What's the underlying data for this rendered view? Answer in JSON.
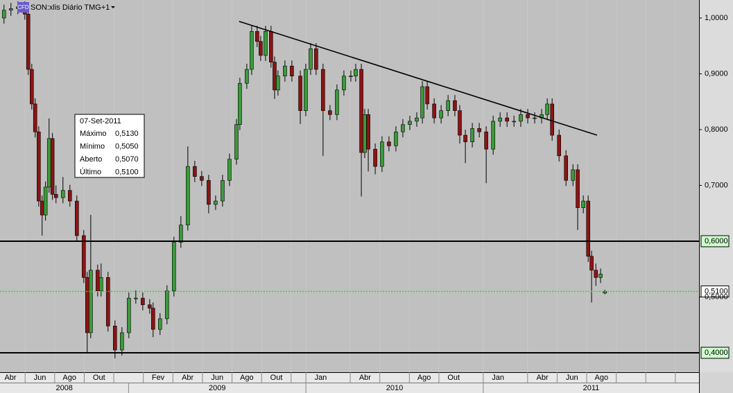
{
  "chart_data": {
    "type": "candlestick",
    "badge": "CFD",
    "title": "SON:xlis Diário TMG+1",
    "xlim": [
      3.3,
      50.6
    ],
    "ylim": [
      0.3652,
      1.0323
    ],
    "yticks": [
      {
        "value": 1.0,
        "label": "1,0000"
      },
      {
        "value": 0.9,
        "label": "0,9000"
      },
      {
        "value": 0.8,
        "label": "0,8000"
      },
      {
        "value": 0.7,
        "label": "0,7000"
      },
      {
        "value": 0.5,
        "label": "0,5000"
      }
    ],
    "xticks": [
      {
        "value": 3,
        "label": "Abr"
      },
      {
        "value": 5,
        "label": "Jun"
      },
      {
        "value": 7,
        "label": "Ago"
      },
      {
        "value": 9,
        "label": "Out"
      },
      {
        "value": 11,
        "label": null
      },
      {
        "value": 13,
        "label": "Fev"
      },
      {
        "value": 15,
        "label": "Abr"
      },
      {
        "value": 17,
        "label": "Jun"
      },
      {
        "value": 19,
        "label": "Ago"
      },
      {
        "value": 21,
        "label": "Out"
      },
      {
        "value": 23,
        "label": null
      },
      {
        "value": 24,
        "label": "Jan"
      },
      {
        "value": 27,
        "label": "Abr"
      },
      {
        "value": 29,
        "label": null
      },
      {
        "value": 31,
        "label": "Ago"
      },
      {
        "value": 33,
        "label": "Out"
      },
      {
        "value": 36,
        "label": "Jan"
      },
      {
        "value": 39,
        "label": "Abr"
      },
      {
        "value": 41,
        "label": "Jun"
      },
      {
        "value": 43,
        "label": "Ago"
      },
      {
        "value": 45,
        "label": null
      },
      {
        "value": 47,
        "label": null
      },
      {
        "value": 49,
        "label": null
      }
    ],
    "years": [
      {
        "value": 0,
        "label": "2008"
      },
      {
        "value": 12,
        "label": "2009"
      },
      {
        "value": 24,
        "label": "2010"
      },
      {
        "value": 36,
        "label": "2011"
      }
    ],
    "up_color": "#3a9a3a",
    "down_color": "#8b1414",
    "x": [
      3.57,
      4.04,
      4.51,
      4.98,
      5.21,
      5.45,
      5.68,
      5.92,
      6.15,
      6.38,
      6.62,
      6.85,
      7.09,
      7.56,
      8.03,
      8.5,
      8.97,
      9.2,
      9.44,
      9.91,
      10.14,
      10.61,
      11.08,
      11.55,
      12.02,
      12.49,
      12.96,
      13.43,
      13.66,
      14.13,
      14.6,
      15.07,
      15.54,
      16.01,
      16.48,
      16.95,
      17.42,
      17.89,
      18.36,
      18.83,
      19.3,
      19.53,
      20.0,
      20.33,
      20.7,
      20.94,
      21.27,
      21.64,
      21.88,
      22.11,
      22.58,
      23.05,
      23.62,
      23.99,
      24.32,
      24.69,
      25.16,
      25.63,
      26.1,
      26.57,
      27.04,
      27.37,
      27.75,
      27.98,
      28.22,
      28.69,
      29.15,
      29.62,
      30.09,
      30.56,
      31.03,
      31.5,
      31.88,
      32.21,
      32.68,
      33.15,
      33.62,
      34.08,
      34.41,
      34.79,
      35.26,
      35.73,
      36.2,
      36.67,
      37.14,
      37.61,
      38.08,
      38.54,
      39.01,
      39.48,
      39.95,
      40.33,
      40.66,
      41.13,
      41.6,
      42.07,
      42.39,
      42.77,
      43.1,
      43.33,
      43.62,
      43.94,
      44.23
    ],
    "open": [
      1.0,
      1.014,
      1.017,
      1.02,
      1.007,
      0.908,
      0.846,
      0.796,
      0.672,
      0.647,
      0.697,
      0.784,
      0.684,
      0.678,
      0.691,
      0.672,
      0.61,
      0.535,
      0.436,
      0.548,
      0.511,
      0.535,
      0.448,
      0.405,
      0.436,
      0.498,
      0.498,
      0.486,
      0.48,
      0.442,
      0.461,
      0.511,
      0.598,
      0.629,
      0.734,
      0.716,
      0.709,
      0.666,
      0.672,
      0.709,
      0.747,
      0.809,
      0.883,
      0.908,
      0.976,
      0.958,
      0.933,
      0.976,
      0.921,
      0.871,
      0.896,
      0.914,
      0.896,
      0.834,
      0.908,
      0.945,
      0.908,
      0.834,
      0.827,
      0.871,
      0.896,
      0.896,
      0.908,
      0.759,
      0.827,
      0.765,
      0.734,
      0.778,
      0.771,
      0.796,
      0.809,
      0.815,
      0.821,
      0.877,
      0.846,
      0.821,
      0.834,
      0.852,
      0.834,
      0.79,
      0.778,
      0.802,
      0.796,
      0.765,
      0.815,
      0.821,
      0.815,
      0.815,
      0.827,
      0.821,
      0.821,
      0.827,
      0.846,
      0.79,
      0.753,
      0.709,
      0.728,
      0.66,
      0.672,
      0.573,
      0.548,
      0.535,
      0.507
    ],
    "high": [
      1.024,
      1.027,
      1.03,
      1.03,
      1.017,
      0.918,
      0.856,
      0.806,
      0.682,
      0.707,
      0.82,
      0.794,
      0.7,
      0.715,
      0.701,
      0.682,
      0.62,
      0.545,
      0.647,
      0.558,
      0.56,
      0.545,
      0.458,
      0.446,
      0.508,
      0.512,
      0.508,
      0.496,
      0.49,
      0.471,
      0.521,
      0.608,
      0.645,
      0.77,
      0.744,
      0.726,
      0.719,
      0.682,
      0.719,
      0.757,
      0.819,
      0.893,
      0.918,
      0.986,
      0.986,
      0.968,
      0.986,
      0.986,
      0.931,
      0.906,
      0.924,
      0.924,
      0.906,
      0.918,
      0.955,
      0.955,
      0.918,
      0.844,
      0.881,
      0.906,
      0.906,
      0.918,
      0.918,
      0.837,
      0.837,
      0.775,
      0.788,
      0.788,
      0.806,
      0.819,
      0.825,
      0.831,
      0.887,
      0.887,
      0.856,
      0.844,
      0.862,
      0.862,
      0.844,
      0.8,
      0.812,
      0.812,
      0.806,
      0.825,
      0.831,
      0.831,
      0.825,
      0.837,
      0.837,
      0.831,
      0.837,
      0.856,
      0.856,
      0.8,
      0.763,
      0.738,
      0.738,
      0.682,
      0.682,
      0.583,
      0.56,
      0.551,
      0.513
    ],
    "low": [
      0.99,
      1.004,
      1.007,
      0.997,
      0.898,
      0.836,
      0.786,
      0.662,
      0.61,
      0.637,
      0.687,
      0.674,
      0.668,
      0.668,
      0.662,
      0.6,
      0.525,
      0.4,
      0.426,
      0.501,
      0.501,
      0.438,
      0.39,
      0.395,
      0.426,
      0.488,
      0.476,
      0.47,
      0.428,
      0.432,
      0.451,
      0.501,
      0.588,
      0.619,
      0.706,
      0.699,
      0.65,
      0.656,
      0.662,
      0.699,
      0.737,
      0.799,
      0.873,
      0.898,
      0.948,
      0.923,
      0.923,
      0.911,
      0.855,
      0.861,
      0.886,
      0.886,
      0.81,
      0.824,
      0.898,
      0.898,
      0.753,
      0.817,
      0.817,
      0.861,
      0.886,
      0.886,
      0.68,
      0.749,
      0.725,
      0.72,
      0.724,
      0.761,
      0.761,
      0.786,
      0.799,
      0.805,
      0.811,
      0.836,
      0.811,
      0.811,
      0.824,
      0.824,
      0.775,
      0.74,
      0.768,
      0.786,
      0.704,
      0.755,
      0.805,
      0.805,
      0.805,
      0.805,
      0.811,
      0.811,
      0.811,
      0.817,
      0.78,
      0.743,
      0.699,
      0.699,
      0.62,
      0.65,
      0.563,
      0.49,
      0.52,
      0.525,
      0.505
    ],
    "close": [
      1.014,
      1.017,
      1.02,
      1.007,
      0.908,
      0.846,
      0.796,
      0.672,
      0.647,
      0.697,
      0.784,
      0.684,
      0.678,
      0.691,
      0.672,
      0.61,
      0.535,
      0.436,
      0.548,
      0.511,
      0.535,
      0.448,
      0.405,
      0.436,
      0.498,
      0.498,
      0.486,
      0.48,
      0.442,
      0.461,
      0.511,
      0.598,
      0.629,
      0.734,
      0.716,
      0.709,
      0.666,
      0.672,
      0.709,
      0.747,
      0.809,
      0.883,
      0.908,
      0.976,
      0.958,
      0.933,
      0.976,
      0.921,
      0.871,
      0.896,
      0.914,
      0.896,
      0.834,
      0.908,
      0.945,
      0.908,
      0.834,
      0.827,
      0.871,
      0.896,
      0.896,
      0.908,
      0.759,
      0.827,
      0.765,
      0.734,
      0.778,
      0.771,
      0.796,
      0.809,
      0.815,
      0.821,
      0.877,
      0.846,
      0.821,
      0.834,
      0.852,
      0.834,
      0.79,
      0.778,
      0.802,
      0.796,
      0.765,
      0.815,
      0.821,
      0.815,
      0.815,
      0.827,
      0.821,
      0.821,
      0.827,
      0.846,
      0.79,
      0.753,
      0.709,
      0.728,
      0.66,
      0.672,
      0.573,
      0.548,
      0.535,
      0.541,
      0.51
    ],
    "levels": [
      {
        "value": 0.6,
        "label": "0,6000",
        "color": "#000000",
        "box": "#ccffcc"
      },
      {
        "value": 0.4,
        "label": "0,4000",
        "color": "#000000",
        "box": "#ccffcc"
      },
      {
        "value": 0.51,
        "label": "0,5100",
        "color": "#22dd22",
        "box": "#ffffff",
        "dashed": true
      }
    ],
    "trendline": {
      "x": [
        19.48,
        43.7
      ],
      "y": [
        0.994,
        0.79
      ]
    },
    "info_box": {
      "date": "07-Set-2011",
      "rows": [
        [
          "Máximo",
          "0,5130"
        ],
        [
          "Mínimo",
          "0,5050"
        ],
        [
          "Aberto",
          "0,5070"
        ],
        [
          "Último",
          "0,5100"
        ]
      ]
    }
  }
}
